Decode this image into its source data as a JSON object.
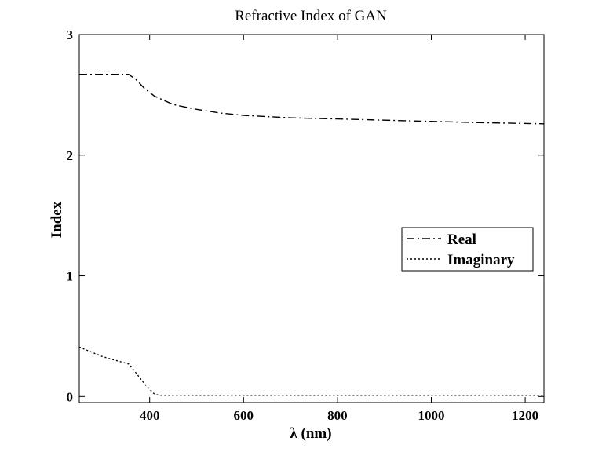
{
  "chart_data": {
    "type": "line",
    "title": "Refractive Index of GAN",
    "xlabel": "λ (nm)",
    "ylabel": "Index",
    "xlim": [
      250,
      1240
    ],
    "ylim": [
      -0.05,
      3
    ],
    "xticks": [
      400,
      600,
      800,
      1000,
      1200
    ],
    "xtick_labels": [
      "400",
      "600",
      "800",
      "1000",
      "1200"
    ],
    "yticks": [
      0,
      1,
      2,
      3
    ],
    "ytick_labels": [
      "0",
      "1",
      "2",
      "3"
    ],
    "grid": false,
    "legend_position": "center-right",
    "series": [
      {
        "name": "Real",
        "line_style": "dash-dot",
        "color": "#000000",
        "x": [
          250,
          300,
          355,
          370,
          390,
          410,
          450,
          500,
          550,
          600,
          650,
          700,
          800,
          900,
          1000,
          1100,
          1240
        ],
        "y": [
          2.67,
          2.67,
          2.67,
          2.63,
          2.55,
          2.49,
          2.42,
          2.38,
          2.35,
          2.33,
          2.32,
          2.31,
          2.3,
          2.29,
          2.28,
          2.27,
          2.26
        ]
      },
      {
        "name": "Imaginary",
        "line_style": "dotted",
        "color": "#000000",
        "x": [
          250,
          300,
          355,
          370,
          390,
          410,
          420,
          500,
          600,
          800,
          1000,
          1240
        ],
        "y": [
          0.41,
          0.33,
          0.27,
          0.2,
          0.1,
          0.02,
          0.01,
          0.01,
          0.01,
          0.01,
          0.01,
          0.01
        ]
      }
    ]
  }
}
